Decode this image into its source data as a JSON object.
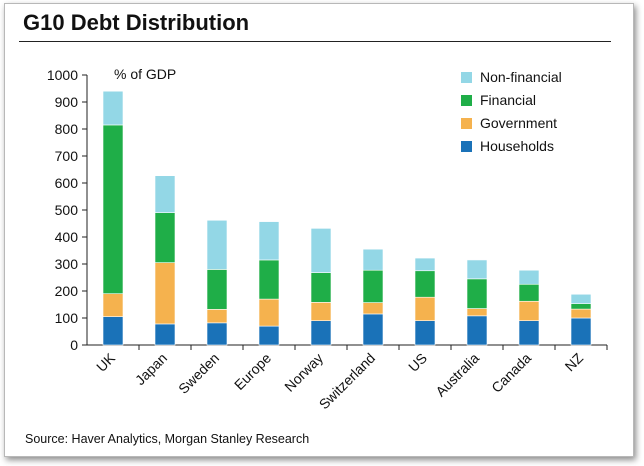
{
  "title": "G10 Debt Distribution",
  "source": "Source: Haver Analytics, Morgan Stanley Research",
  "chart_data": {
    "type": "bar",
    "stacked": true,
    "unit_label": "% of GDP",
    "categories": [
      "UK",
      "Japan",
      "Sweden",
      "Europe",
      "Norway",
      "Switzerland",
      "US",
      "Australia",
      "Canada",
      "NZ"
    ],
    "series": [
      {
        "name": "Households",
        "color": "#1a72b8",
        "values": [
          105,
          78,
          82,
          70,
          90,
          115,
          90,
          108,
          90,
          100
        ]
      },
      {
        "name": "Government",
        "color": "#f5b24e",
        "values": [
          85,
          227,
          50,
          100,
          68,
          42,
          87,
          27,
          72,
          33
        ]
      },
      {
        "name": "Financial",
        "color": "#1fae48",
        "values": [
          625,
          185,
          148,
          145,
          110,
          120,
          98,
          110,
          63,
          20
        ]
      },
      {
        "name": "Non-financial",
        "color": "#93d7e6",
        "values": [
          125,
          137,
          182,
          142,
          164,
          78,
          47,
          70,
          52,
          35
        ]
      }
    ],
    "legend_order": [
      "Non-financial",
      "Financial",
      "Government",
      "Households"
    ],
    "legend_position": "top-right",
    "ylim": [
      0,
      1000
    ],
    "yticks": [
      0,
      100,
      200,
      300,
      400,
      500,
      600,
      700,
      800,
      900,
      1000
    ],
    "grid": false
  }
}
